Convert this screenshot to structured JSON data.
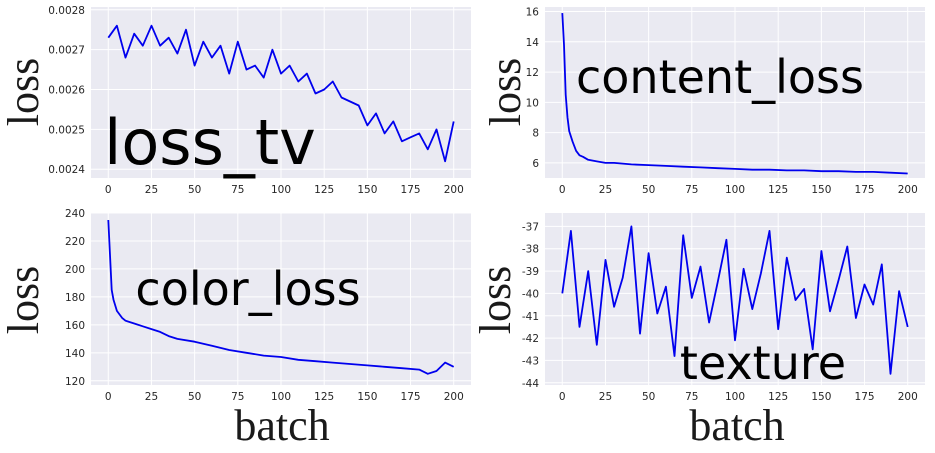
{
  "chart_data": [
    {
      "type": "line",
      "title": "loss_tv",
      "ylabel": "loss",
      "xlabel": "",
      "xlim": [
        -10,
        210
      ],
      "ylim": [
        0.002378,
        0.002807
      ],
      "xticks": [
        0,
        25,
        50,
        75,
        100,
        125,
        150,
        175,
        200
      ],
      "yticks": [
        0.0024,
        0.0025,
        0.0026,
        0.0027,
        0.0028
      ],
      "ytick_labels": [
        "0.0024",
        "0.0025",
        "0.0026",
        "0.0027",
        "0.0028"
      ],
      "grid": true,
      "series": [
        {
          "color": "#0000ee",
          "x": [
            0,
            5,
            10,
            15,
            20,
            25,
            30,
            35,
            40,
            45,
            50,
            55,
            60,
            65,
            70,
            75,
            80,
            85,
            90,
            95,
            100,
            105,
            110,
            115,
            120,
            125,
            130,
            135,
            140,
            145,
            150,
            155,
            160,
            165,
            170,
            175,
            180,
            185,
            190,
            195,
            200
          ],
          "values": [
            0.00273,
            0.00276,
            0.00268,
            0.00274,
            0.00271,
            0.00276,
            0.00271,
            0.00273,
            0.00269,
            0.00275,
            0.00266,
            0.00272,
            0.00268,
            0.00271,
            0.00264,
            0.00272,
            0.00265,
            0.00266,
            0.00263,
            0.0027,
            0.00264,
            0.00266,
            0.00262,
            0.00264,
            0.00259,
            0.0026,
            0.00262,
            0.00258,
            0.00257,
            0.00256,
            0.00251,
            0.00254,
            0.00249,
            0.00252,
            0.00247,
            0.00248,
            0.00249,
            0.00245,
            0.0025,
            0.00242,
            0.00252
          ]
        }
      ]
    },
    {
      "type": "line",
      "title": "content_loss",
      "ylabel": "loss",
      "xlabel": "",
      "xlim": [
        -10,
        210
      ],
      "ylim": [
        5.0,
        16.3
      ],
      "xticks": [
        0,
        25,
        50,
        75,
        100,
        125,
        150,
        175,
        200
      ],
      "yticks": [
        6,
        8,
        10,
        12,
        14,
        16
      ],
      "ytick_labels": [
        "6",
        "8",
        "10",
        "12",
        "14",
        "16"
      ],
      "grid": true,
      "series": [
        {
          "color": "#0000ee",
          "x": [
            0,
            1,
            2,
            3,
            4,
            6,
            8,
            10,
            12,
            15,
            20,
            25,
            30,
            40,
            50,
            60,
            70,
            80,
            90,
            100,
            110,
            120,
            130,
            140,
            150,
            160,
            170,
            180,
            190,
            200
          ],
          "values": [
            15.9,
            13.8,
            10.5,
            9.0,
            8.1,
            7.4,
            6.8,
            6.5,
            6.4,
            6.2,
            6.1,
            6.0,
            6.0,
            5.9,
            5.85,
            5.8,
            5.75,
            5.7,
            5.65,
            5.6,
            5.55,
            5.55,
            5.5,
            5.5,
            5.45,
            5.45,
            5.4,
            5.4,
            5.35,
            5.3
          ]
        }
      ]
    },
    {
      "type": "line",
      "title": "color_loss",
      "ylabel": "loss",
      "xlabel": "batch",
      "xlim": [
        -10,
        210
      ],
      "ylim": [
        117,
        240
      ],
      "xticks": [
        0,
        25,
        50,
        75,
        100,
        125,
        150,
        175,
        200
      ],
      "yticks": [
        120,
        140,
        160,
        180,
        200,
        220,
        240
      ],
      "ytick_labels": [
        "120",
        "140",
        "160",
        "180",
        "200",
        "220",
        "240"
      ],
      "grid": true,
      "series": [
        {
          "color": "#0000ee",
          "x": [
            0,
            1,
            2,
            3,
            5,
            8,
            10,
            15,
            20,
            25,
            30,
            35,
            40,
            50,
            60,
            70,
            80,
            90,
            100,
            110,
            120,
            130,
            140,
            150,
            160,
            170,
            180,
            185,
            190,
            195,
            200
          ],
          "values": [
            235,
            210,
            185,
            178,
            170,
            165,
            163,
            161,
            159,
            157,
            155,
            152,
            150,
            148,
            145,
            142,
            140,
            138,
            137,
            135,
            134,
            133,
            132,
            131,
            130,
            129,
            128,
            125,
            127,
            133,
            130
          ]
        }
      ]
    },
    {
      "type": "line",
      "title": "texture",
      "ylabel": "loss",
      "xlabel": "batch",
      "xlim": [
        -10,
        210
      ],
      "ylim": [
        -44.1,
        -36.4
      ],
      "xticks": [
        0,
        25,
        50,
        75,
        100,
        125,
        150,
        175,
        200
      ],
      "yticks": [
        -37,
        -38,
        -39,
        -40,
        -41,
        -42,
        -43,
        -44
      ],
      "ytick_labels": [
        "-37",
        "-38",
        "-39",
        "-40",
        "-41",
        "-42",
        "-43",
        "-44"
      ],
      "grid": true,
      "series": [
        {
          "color": "#0000ee",
          "x": [
            0,
            5,
            10,
            15,
            20,
            25,
            30,
            35,
            40,
            45,
            50,
            55,
            60,
            65,
            70,
            75,
            80,
            85,
            90,
            95,
            100,
            105,
            110,
            115,
            120,
            125,
            130,
            135,
            140,
            145,
            150,
            155,
            160,
            165,
            170,
            175,
            180,
            185,
            190,
            195,
            200
          ],
          "values": [
            -40.0,
            -37.2,
            -41.5,
            -39.0,
            -42.3,
            -38.5,
            -40.6,
            -39.3,
            -37.0,
            -41.8,
            -38.2,
            -40.9,
            -39.7,
            -42.8,
            -37.4,
            -40.2,
            -38.8,
            -41.3,
            -39.5,
            -37.6,
            -42.1,
            -38.9,
            -40.7,
            -39.1,
            -37.2,
            -41.6,
            -38.4,
            -40.3,
            -39.8,
            -42.5,
            -38.1,
            -40.8,
            -39.4,
            -37.9,
            -41.1,
            -39.6,
            -40.5,
            -38.7,
            -43.6,
            -39.9,
            -41.5
          ]
        }
      ]
    }
  ]
}
